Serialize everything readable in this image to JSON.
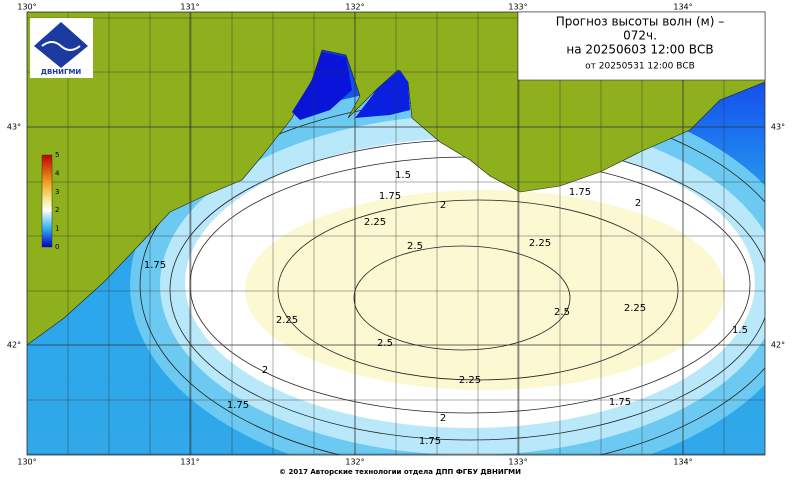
{
  "title": {
    "line1": "Прогноз высоты волн (м) –",
    "line2": "072ч.",
    "line3": "на 20250603 12:00 ВСВ",
    "line4": "от 20250531 12:00 ВСВ"
  },
  "logo": "ДВНИГМИ",
  "lon_labels": [
    "130°",
    "131°",
    "132°",
    "133°",
    "134°"
  ],
  "lat_labels": [
    "43°",
    "42°"
  ],
  "colorbar_labels": [
    "0",
    "1",
    "2",
    "3",
    "4",
    "5"
  ],
  "contour_labels": [
    "1.5",
    "1.75",
    "2",
    "2.25",
    "2.5",
    "2.25",
    "1.75",
    "2",
    "1.75",
    "2.5",
    "2.25",
    "2.25",
    "2.5",
    "1.5",
    "2",
    "2.25",
    "1.75",
    "1.75",
    "2",
    "1.75"
  ],
  "footer": "© 2017 Авторские технологии отдела ДПП ФГБУ ДВНИГМИ"
}
